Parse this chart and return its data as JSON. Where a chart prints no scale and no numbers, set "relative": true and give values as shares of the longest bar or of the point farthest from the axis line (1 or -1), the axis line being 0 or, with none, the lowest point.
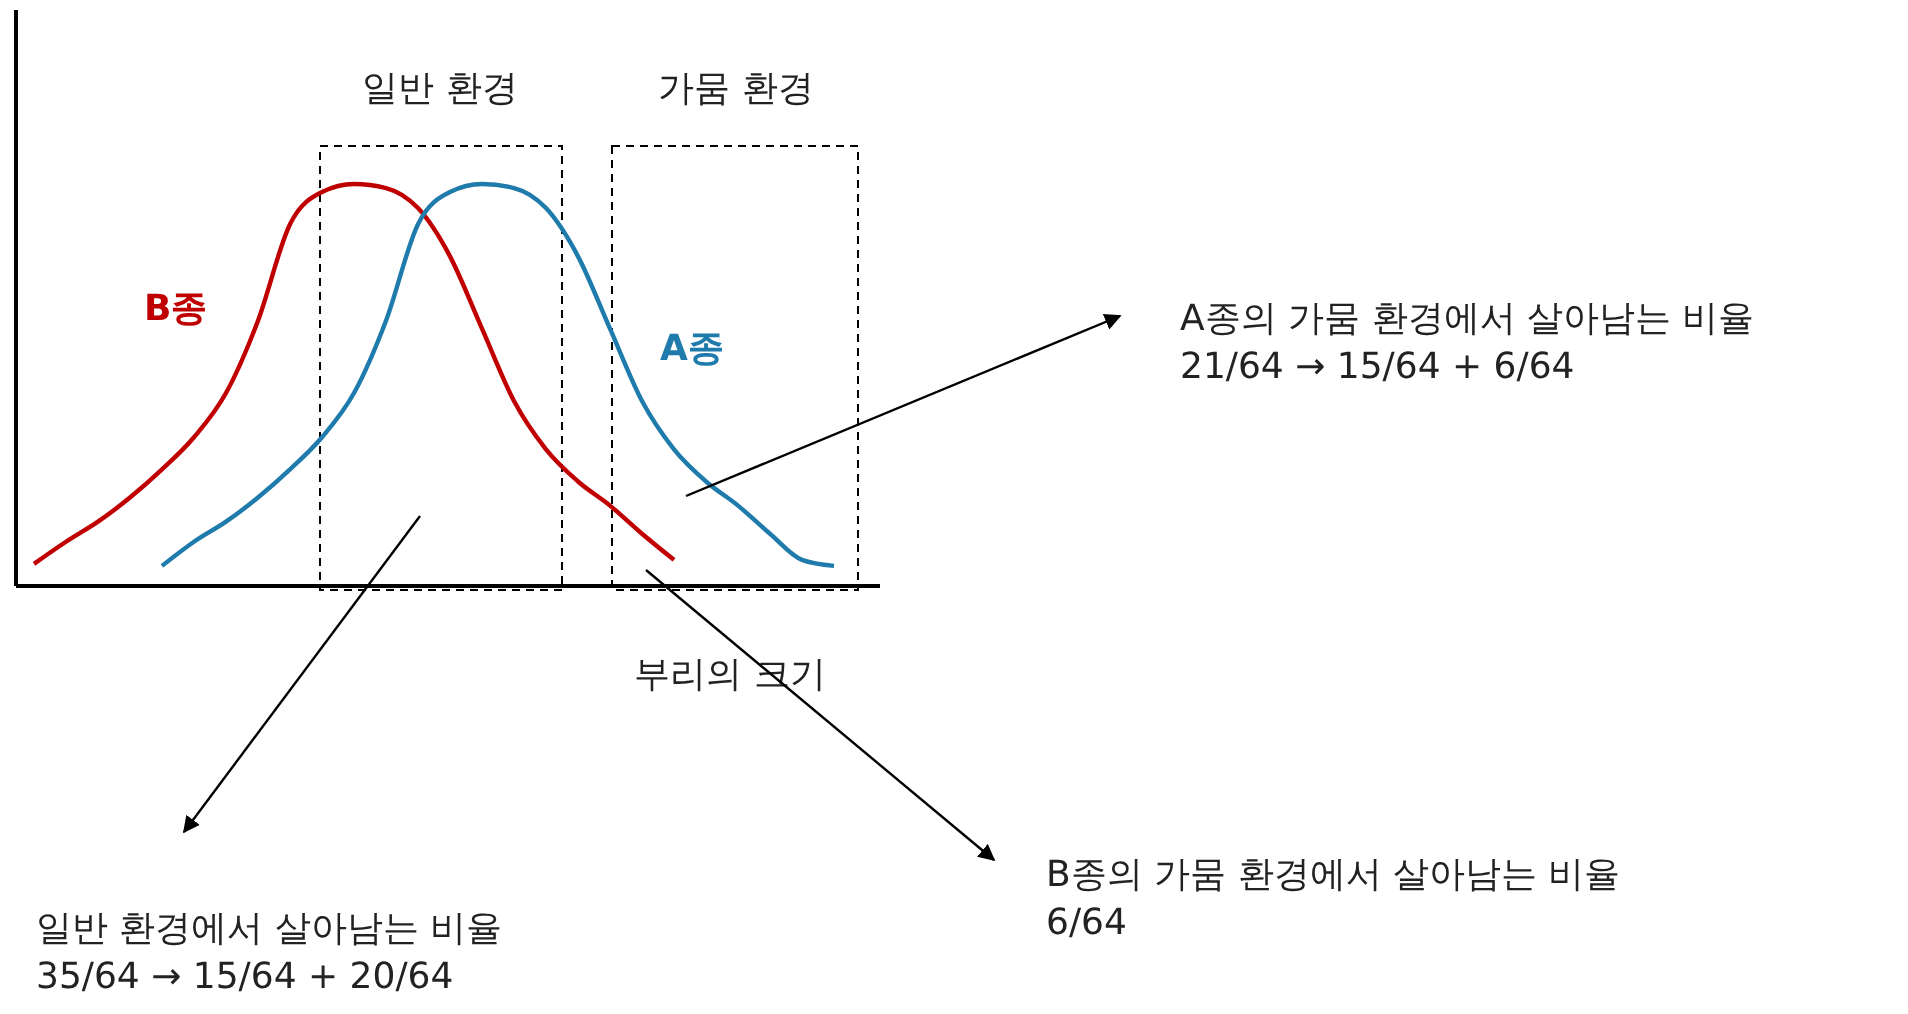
{
  "chart_data": {
    "type": "line",
    "relative": true,
    "xlabel": "부리의 크기",
    "categories": [
      null,
      null,
      null,
      null,
      null,
      null,
      null,
      null,
      null,
      null,
      null,
      null,
      null,
      null,
      null,
      null,
      null,
      null,
      null,
      null,
      null,
      null,
      null,
      null,
      null,
      null
    ],
    "series": [
      {
        "name": "B종",
        "color": "#c00000",
        "values": [
          0.055,
          0.11,
          0.16,
          0.22,
          0.29,
          0.37,
          0.48,
          0.66,
          0.9,
          0.98,
          1.0,
          0.99,
          0.94,
          0.82,
          0.64,
          0.46,
          0.34,
          0.26,
          0.2,
          0.13,
          0.065,
          null,
          null,
          null,
          null,
          null
        ]
      },
      {
        "name": "A종",
        "color": "#1f7bab",
        "values": [
          null,
          null,
          null,
          null,
          0.05,
          0.11,
          0.16,
          0.22,
          0.29,
          0.37,
          0.48,
          0.66,
          0.9,
          0.98,
          1.0,
          0.99,
          0.94,
          0.82,
          0.64,
          0.46,
          0.34,
          0.26,
          0.2,
          0.13,
          0.065,
          0.05
        ]
      }
    ],
    "annotations": [
      "일반 환경",
      "가뭄 환경",
      "일반 환경에서 살아남는 비율\n35/64 → 15/64 + 20/64",
      "A종의 가뭄 환경에서 살아남는 비율\n21/64 → 15/64 + 6/64",
      "B종의 가뭄 환경에서 살아남는 비율\n6/64"
    ],
    "marker": "none",
    "line_style": "solid"
  }
}
